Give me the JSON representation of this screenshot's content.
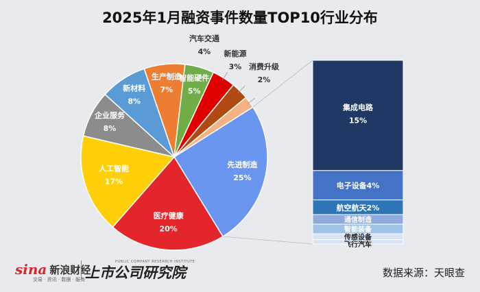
{
  "title": "2025年1月融资事件数量TOP10行业分布",
  "source": "数据来源：天眼查",
  "logo": {
    "brand_mark": "sina",
    "brand_name": "新浪财经",
    "brand_sub": "交易 · 资讯 · 数据 · 服务",
    "institute": "上市公司研究院",
    "institute_en": "PUBLIC COMPANY RESEARCH INSTITUTE"
  },
  "chart_data": [
    {
      "type": "pie",
      "slices": [
        {
          "label": "先进制造",
          "value": 25,
          "display": "25%",
          "color": "#6a96f0"
        },
        {
          "label": "医疗健康",
          "value": 20,
          "display": "20%",
          "color": "#e3262b"
        },
        {
          "label": "人工智能",
          "value": 17,
          "display": "17%",
          "color": "#ffd009"
        },
        {
          "label": "企业服务",
          "value": 8,
          "display": "8%",
          "color": "#8c8c8c"
        },
        {
          "label": "新材料",
          "value": 8,
          "display": "8%",
          "color": "#5b9bd5"
        },
        {
          "label": "生产制造",
          "value": 7,
          "display": "7%",
          "color": "#ed7d31"
        },
        {
          "label": "智能硬件",
          "value": 5,
          "display": "5%",
          "color": "#70ad47"
        },
        {
          "label": "汽车交通",
          "value": 4,
          "display": "4%",
          "color": "#e00000"
        },
        {
          "label": "新能源",
          "value": 3,
          "display": "3%",
          "color": "#b14a12"
        },
        {
          "label": "消费升级",
          "value": 2,
          "display": "2%",
          "color": "#f4b183"
        }
      ]
    },
    {
      "type": "bar",
      "stacked": true,
      "breakdown_of": "先进制造",
      "segments": [
        {
          "label": "集成电路",
          "value": 15,
          "display": "15%",
          "color": "#1f3864"
        },
        {
          "label": "电子设备",
          "value": 4,
          "display": "4%",
          "color": "#4472c4"
        },
        {
          "label": "航空航天",
          "value": 2,
          "display": "2%",
          "color": "#2e75b6"
        },
        {
          "label": "通信制造",
          "value": 1.3,
          "display": "",
          "color": "#8faadc"
        },
        {
          "label": "智能装备",
          "value": 1.3,
          "display": "",
          "color": "#9dc3e6"
        },
        {
          "label": "传感设备",
          "value": 0.8,
          "display": "",
          "color": "#dae3f3"
        },
        {
          "label": "飞行汽车",
          "value": 0.6,
          "display": "",
          "color": "#dae3f3"
        }
      ]
    }
  ]
}
